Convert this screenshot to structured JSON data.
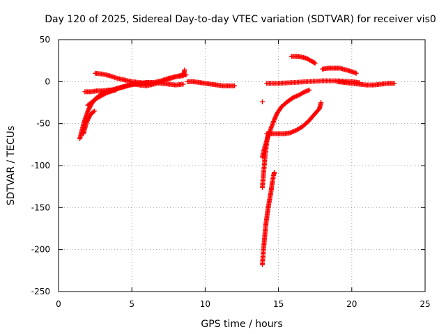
{
  "chart_data": {
    "type": "scatter",
    "title": "Day 120 of 2025, Sidereal Day-to-day VTEC variation (SDTVAR) for receiver vis0",
    "xlabel": "GPS time / hours",
    "ylabel": "SDTVAR / TECUs",
    "xlim": [
      0,
      25
    ],
    "ylim": [
      -250,
      50
    ],
    "x_ticks": [
      0,
      5,
      10,
      15,
      20,
      25
    ],
    "y_ticks": [
      -250,
      -200,
      -150,
      -100,
      -50,
      0,
      50
    ],
    "x_tick_labels": [
      "0",
      "5",
      "10",
      "15",
      "20",
      "25"
    ],
    "y_tick_labels": [
      "-250",
      "-200",
      "-150",
      "-100",
      "-50",
      "0",
      "50"
    ],
    "grid": true,
    "marker": "plus",
    "series": [
      {
        "color": "#ff0000",
        "segments": [
          [
            [
              1.45,
              -68
            ],
            [
              1.6,
              -58
            ],
            [
              1.75,
              -48
            ],
            [
              1.9,
              -40
            ],
            [
              2.05,
              -33
            ],
            [
              2.2,
              -28
            ],
            [
              2.35,
              -24
            ],
            [
              2.55,
              -20
            ],
            [
              2.75,
              -17
            ],
            [
              3.0,
              -14
            ],
            [
              3.3,
              -12
            ],
            [
              3.6,
              -11
            ],
            [
              3.9,
              -10
            ]
          ],
          [
            [
              1.7,
              -62
            ],
            [
              1.85,
              -52
            ],
            [
              2.0,
              -45
            ],
            [
              2.15,
              -40
            ],
            [
              2.3,
              -37
            ],
            [
              2.45,
              -35
            ]
          ],
          [
            [
              2.0,
              -28
            ],
            [
              2.3,
              -24
            ],
            [
              2.6,
              -20
            ],
            [
              2.9,
              -17
            ],
            [
              3.2,
              -14
            ],
            [
              3.5,
              -12
            ],
            [
              3.8,
              -10
            ],
            [
              4.1,
              -8
            ],
            [
              4.5,
              -6
            ],
            [
              4.9,
              -4
            ],
            [
              5.3,
              -3
            ],
            [
              5.7,
              -2
            ],
            [
              6.1,
              -1
            ]
          ],
          [
            [
              1.8,
              -12
            ],
            [
              2.2,
              -12
            ],
            [
              2.6,
              -11
            ],
            [
              3.0,
              -11
            ],
            [
              3.4,
              -10
            ],
            [
              3.8,
              -10
            ]
          ],
          [
            [
              2.5,
              10
            ],
            [
              3.0,
              9
            ],
            [
              3.5,
              7
            ],
            [
              4.0,
              4
            ],
            [
              4.5,
              2
            ],
            [
              5.0,
              0
            ],
            [
              5.5,
              -1
            ],
            [
              6.0,
              -2
            ]
          ],
          [
            [
              3.0,
              -13
            ],
            [
              3.4,
              -11
            ],
            [
              3.8,
              -9
            ],
            [
              4.2,
              -7
            ],
            [
              4.6,
              -5
            ],
            [
              5.0,
              -3
            ],
            [
              5.5,
              -2
            ],
            [
              6.0,
              -1
            ],
            [
              6.5,
              -1
            ],
            [
              7.0,
              -2
            ],
            [
              7.5,
              -3
            ],
            [
              8.0,
              -4
            ],
            [
              8.5,
              -3
            ]
          ],
          [
            [
              5.0,
              -2
            ],
            [
              5.5,
              -4
            ],
            [
              6.0,
              -5
            ],
            [
              6.5,
              -3
            ],
            [
              7.0,
              0
            ],
            [
              7.5,
              3
            ],
            [
              8.0,
              6
            ],
            [
              8.5,
              8
            ],
            [
              8.7,
              8
            ]
          ],
          [
            [
              5.5,
              -3
            ],
            [
              6.0,
              -2
            ],
            [
              6.5,
              -1
            ],
            [
              7.0,
              1
            ],
            [
              7.5,
              4
            ],
            [
              8.0,
              6
            ],
            [
              8.5,
              7
            ],
            [
              8.6,
              14
            ]
          ],
          [
            [
              8.8,
              0
            ],
            [
              9.2,
              0
            ],
            [
              9.6,
              -1
            ],
            [
              10.0,
              -2
            ],
            [
              10.4,
              -3
            ],
            [
              10.8,
              -4
            ],
            [
              11.2,
              -5
            ],
            [
              11.6,
              -5
            ],
            [
              12.0,
              -5
            ]
          ],
          [
            [
              13.9,
              -218
            ],
            [
              13.98,
              -200
            ],
            [
              14.06,
              -185
            ],
            [
              14.14,
              -170
            ],
            [
              14.22,
              -160
            ],
            [
              14.3,
              -150
            ],
            [
              14.4,
              -140
            ],
            [
              14.5,
              -130
            ],
            [
              14.58,
              -120
            ],
            [
              14.66,
              -112
            ],
            [
              14.72,
              -108
            ]
          ],
          [
            [
              13.9,
              -126
            ],
            [
              13.94,
              -118
            ],
            [
              13.98,
              -110
            ],
            [
              14.02,
              -102
            ],
            [
              14.06,
              -94
            ],
            [
              14.1,
              -86
            ],
            [
              14.16,
              -78
            ],
            [
              14.22,
              -70
            ],
            [
              14.3,
              -62
            ]
          ],
          [
            [
              13.9,
              -90
            ],
            [
              14.0,
              -82
            ],
            [
              14.1,
              -76
            ],
            [
              14.2,
              -70
            ],
            [
              14.35,
              -62
            ],
            [
              14.5,
              -55
            ],
            [
              14.7,
              -46
            ],
            [
              14.9,
              -38
            ],
            [
              15.2,
              -30
            ],
            [
              15.6,
              -24
            ],
            [
              16.0,
              -19
            ],
            [
              16.4,
              -16
            ],
            [
              16.8,
              -12
            ],
            [
              17.1,
              -10
            ]
          ],
          [
            [
              13.9,
              -24
            ]
          ],
          [
            [
              14.2,
              -62
            ],
            [
              14.6,
              -62
            ],
            [
              15.0,
              -62
            ],
            [
              15.4,
              -62
            ],
            [
              15.8,
              -61
            ],
            [
              16.2,
              -58
            ],
            [
              16.6,
              -54
            ],
            [
              17.0,
              -48
            ],
            [
              17.4,
              -40
            ],
            [
              17.8,
              -32
            ],
            [
              17.9,
              -25
            ]
          ],
          [
            [
              14.2,
              -2
            ],
            [
              15.0,
              -2
            ],
            [
              16.0,
              -1
            ],
            [
              17.0,
              0
            ],
            [
              18.0,
              1
            ],
            [
              19.0,
              1
            ],
            [
              20.0,
              0
            ],
            [
              20.5,
              -1
            ]
          ],
          [
            [
              15.9,
              30
            ],
            [
              16.3,
              30
            ],
            [
              16.7,
              29
            ],
            [
              17.0,
              27
            ],
            [
              17.3,
              24
            ],
            [
              17.5,
              22
            ]
          ],
          [
            [
              18.0,
              15
            ],
            [
              18.4,
              16
            ],
            [
              18.8,
              16
            ],
            [
              19.2,
              16
            ],
            [
              19.6,
              14
            ],
            [
              20.0,
              12
            ],
            [
              20.3,
              10
            ]
          ],
          [
            [
              19.0,
              0
            ],
            [
              19.5,
              -1
            ],
            [
              20.0,
              -2
            ],
            [
              20.5,
              -3
            ],
            [
              21.0,
              -4
            ],
            [
              21.5,
              -4
            ],
            [
              22.0,
              -3
            ],
            [
              22.5,
              -2
            ],
            [
              22.9,
              -2
            ]
          ]
        ]
      }
    ]
  }
}
